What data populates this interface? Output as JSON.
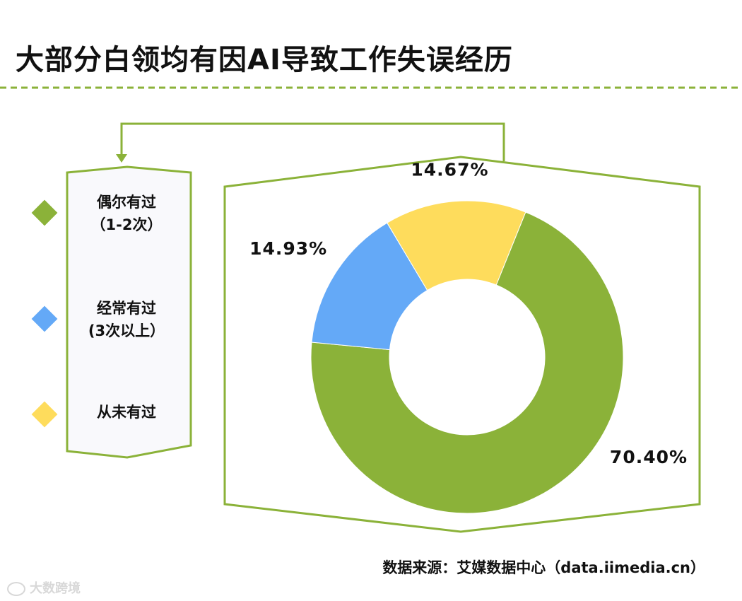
{
  "title": "大部分白领均有因AI导致工作失误经历",
  "source": "数据来源：艾媒数据中心（data.iimedia.cn）",
  "watermark": "大数跨境",
  "colors": {
    "green": "#8BB239",
    "blue": "#64A9F7",
    "yellow": "#FEDC5C",
    "panel": "#F9F9FC",
    "text": "#111111"
  },
  "legend": [
    {
      "line1": "偶尔有过",
      "line2": "（1-2次）",
      "color": "#8BB239"
    },
    {
      "line1": "经常有过",
      "line2": "(3次以上）",
      "color": "#64A9F7"
    },
    {
      "line1": "从未有过",
      "line2": "",
      "color": "#FEDC5C"
    }
  ],
  "chart_data": {
    "type": "pie",
    "donut": true,
    "categories": [
      "偶尔有过（1-2次）",
      "经常有过(3次以上）",
      "从未有过"
    ],
    "values": [
      70.4,
      14.93,
      14.67
    ],
    "labels": [
      "70.40%",
      "14.93%",
      "14.67%"
    ],
    "colors": [
      "#8BB239",
      "#64A9F7",
      "#FEDC5C"
    ],
    "legend": "left"
  }
}
